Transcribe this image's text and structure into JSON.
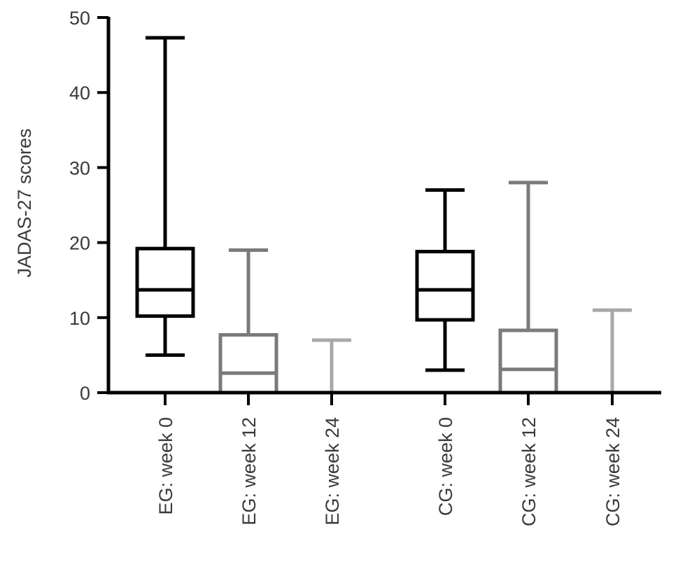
{
  "chart_data": {
    "type": "boxplot",
    "title": "",
    "xlabel": "",
    "ylabel": "JADAS-27 scores",
    "ylim": [
      0,
      50
    ],
    "yticks": [
      "0",
      "10",
      "20",
      "30",
      "40",
      "50"
    ],
    "grid": false,
    "legend": "none",
    "categories": [
      "EG: week 0",
      "EG: week 12",
      "EG: week 24",
      "CG: week 0",
      "CG: week 12",
      "CG: week 24"
    ],
    "boxes": [
      {
        "label": "EG: week 0",
        "min": 5,
        "q1": 10.2,
        "median": 13.7,
        "q3": 19.2,
        "max": 47.3,
        "color": "#000000"
      },
      {
        "label": "EG: week 12",
        "min": 0,
        "q1": 0,
        "median": 2.6,
        "q3": 7.7,
        "max": 19,
        "color": "#7a7a7a"
      },
      {
        "label": "EG: week 24",
        "min": 0,
        "q1": 0,
        "median": 0,
        "q3": 0,
        "max": 7,
        "color": "#a8a8a8"
      },
      {
        "label": "CG: week 0",
        "min": 3,
        "q1": 9.7,
        "median": 13.7,
        "q3": 18.8,
        "max": 27,
        "color": "#000000"
      },
      {
        "label": "CG: week 12",
        "min": 0,
        "q1": 0,
        "median": 3.1,
        "q3": 8.3,
        "max": 28,
        "color": "#7a7a7a"
      },
      {
        "label": "CG: week 24",
        "min": 0,
        "q1": 0,
        "median": 0,
        "q3": 0,
        "max": 11,
        "color": "#a8a8a8"
      }
    ]
  }
}
